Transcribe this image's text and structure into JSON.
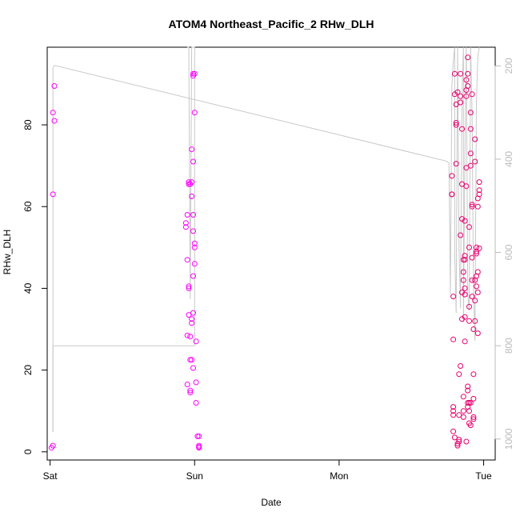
{
  "chart_data": {
    "type": "scatter",
    "title": "ATOM4 Northeast_Pacific_2 RHw_DLH",
    "xlabel": "Date",
    "ylabel": "RHw_DLH",
    "xlim": [
      -0.02,
      3.08
    ],
    "ylim": [
      -2,
      99
    ],
    "y2lim": [
      1045,
      160
    ],
    "x_ticks": [
      {
        "value": 0,
        "label": "Sat"
      },
      {
        "value": 1,
        "label": "Sun"
      },
      {
        "value": 2,
        "label": "Mon"
      },
      {
        "value": 3,
        "label": "Tue"
      }
    ],
    "y_ticks": [
      0,
      20,
      40,
      60,
      80
    ],
    "y2_ticks": [
      200,
      400,
      600,
      800,
      1000
    ],
    "colors": {
      "points_early": "#ff00ff",
      "points_late": "#e6006e",
      "pressure_line": "#c8c8c8",
      "axis": "#000000",
      "y2_axis": "#bbbbbb"
    },
    "series": [
      {
        "values_x": [
          0.01,
          0.02,
          0.02,
          0.02,
          0.03,
          0.03,
          0.94,
          0.94,
          0.95,
          0.95,
          0.95,
          0.95,
          0.96,
          0.96,
          0.96,
          0.96,
          0.96,
          0.97,
          0.97,
          0.97,
          0.97,
          0.97,
          0.98,
          0.98,
          0.98,
          0.98,
          0.98,
          0.98,
          0.99,
          0.99,
          0.99,
          0.99,
          0.99,
          0.99,
          0.99,
          0.99,
          1.0,
          1.0,
          1.0,
          1.0,
          1.0,
          1.01,
          1.01,
          1.01,
          1.02,
          1.03,
          1.03,
          1.03,
          1.03
        ],
        "values_y": [
          1.0,
          1.5,
          63,
          83,
          81,
          89.5,
          55,
          56,
          58,
          47,
          28.5,
          16.5,
          65.5,
          66,
          40.5,
          40,
          33.5,
          14.5,
          15,
          28.2,
          22.5,
          65.5,
          74,
          66,
          62.5,
          31.5,
          32.5,
          22.5,
          71,
          54,
          43,
          34,
          58,
          20.5,
          92.5,
          92,
          92.5,
          83,
          46,
          51,
          50,
          17,
          12,
          27,
          3.8,
          3.8,
          1,
          1.2,
          1.5
        ]
      },
      {
        "values_x": [
          2.78,
          2.78,
          2.78,
          2.79,
          2.79,
          2.79,
          2.79,
          2.79,
          2.79,
          2.8,
          2.8,
          2.8,
          2.81,
          2.81,
          2.81,
          2.81,
          2.82,
          2.82,
          2.82,
          2.83,
          2.83,
          2.83,
          2.83,
          2.84,
          2.84,
          2.84,
          2.84,
          2.84,
          2.85,
          2.85,
          2.85,
          2.85,
          2.85,
          2.86,
          2.86,
          2.86,
          2.86,
          2.86,
          2.86,
          2.87,
          2.87,
          2.87,
          2.87,
          2.87,
          2.87,
          2.87,
          2.88,
          2.88,
          2.88,
          2.88,
          2.88,
          2.88,
          2.89,
          2.89,
          2.89,
          2.89,
          2.89,
          2.89,
          2.89,
          2.9,
          2.9,
          2.9,
          2.9,
          2.9,
          2.9,
          2.9,
          2.91,
          2.91,
          2.91,
          2.91,
          2.91,
          2.91,
          2.92,
          2.92,
          2.92,
          2.92,
          2.92,
          2.92,
          2.93,
          2.93,
          2.93,
          2.93,
          2.93,
          2.94,
          2.94,
          2.94,
          2.94,
          2.94,
          2.95,
          2.95,
          2.95,
          2.95,
          2.95,
          2.96,
          2.96,
          2.96,
          2.96,
          2.96,
          2.97,
          2.97,
          2.97,
          2.97
        ],
        "values_y": [
          63,
          67.5,
          63,
          27.5,
          38,
          10,
          9,
          11,
          5,
          3.5,
          92.5,
          87.5,
          80,
          85,
          80.5,
          70.5,
          88,
          1.5,
          2,
          3,
          2.5,
          19,
          9,
          92.5,
          87,
          85.5,
          53,
          21,
          79,
          39,
          32.5,
          65.5,
          57,
          13.5,
          10,
          8.5,
          47,
          44,
          42,
          40,
          38.5,
          48,
          56.5,
          47,
          33,
          27,
          2.5,
          69.5,
          65,
          88.5,
          91,
          87,
          96.5,
          89.5,
          92.5,
          11,
          12,
          15,
          16,
          50,
          55,
          32,
          35.5,
          12,
          7,
          10,
          12,
          6.5,
          70,
          73,
          83,
          79,
          87.5,
          38,
          42,
          60,
          60.5,
          47.5,
          30,
          19,
          13,
          8.5,
          8,
          37,
          76.5,
          71,
          42,
          32,
          49,
          50,
          48.5,
          40.5,
          43,
          39,
          29,
          44,
          62,
          60,
          49.8,
          64,
          63,
          66
        ],
        "description_only": false
      }
    ],
    "pressure_path_points": [
      [
        0.02,
        985
      ],
      [
        0.02,
        205
      ],
      [
        0.03,
        199
      ],
      [
        2.74,
        404
      ],
      [
        2.76,
        408
      ],
      [
        2.77,
        690
      ],
      [
        2.78,
        245
      ],
      [
        2.79,
        190
      ],
      [
        2.8,
        160
      ],
      [
        2.8,
        600
      ],
      [
        2.81,
        730
      ],
      [
        2.82,
        160
      ],
      [
        2.83,
        590
      ],
      [
        2.84,
        720
      ],
      [
        2.85,
        260
      ],
      [
        2.86,
        160
      ],
      [
        2.86,
        750
      ],
      [
        2.87,
        400
      ],
      [
        2.88,
        160
      ],
      [
        2.89,
        690
      ],
      [
        2.9,
        725
      ],
      [
        2.91,
        160
      ],
      [
        2.92,
        300
      ],
      [
        2.93,
        690
      ],
      [
        2.94,
        790
      ],
      [
        2.95,
        280
      ],
      [
        2.96,
        180
      ],
      [
        2.97,
        160
      ]
    ],
    "pressure_path_b": [
      [
        0.02,
        985
      ],
      [
        0.02,
        800
      ],
      [
        1.0,
        800
      ],
      [
        1.0,
        160
      ],
      [
        0.98,
        160
      ],
      [
        0.97,
        700
      ],
      [
        0.96,
        160
      ],
      [
        0.95,
        160
      ]
    ]
  }
}
